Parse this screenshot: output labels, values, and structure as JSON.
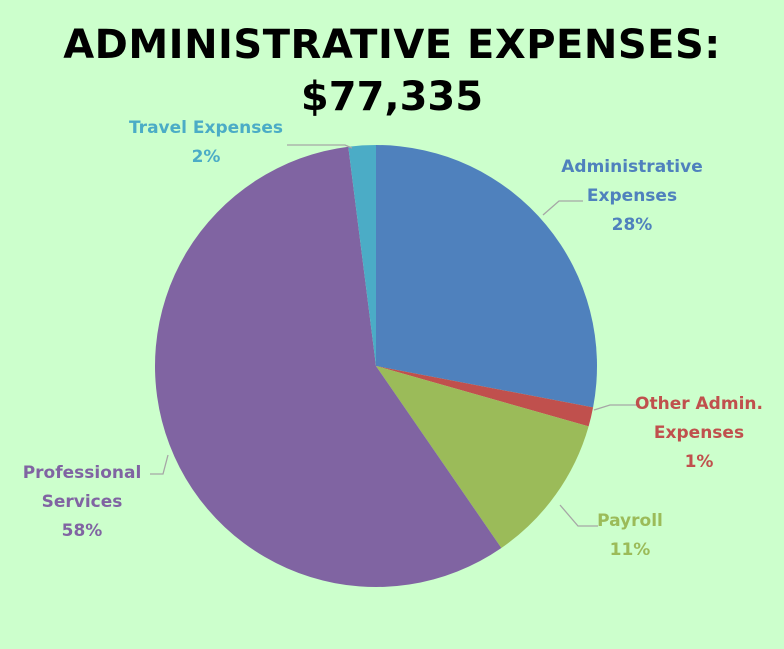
{
  "chart_data": {
    "type": "pie",
    "title": "ADMINISTRATIVE EXPENSES:",
    "subtitle": "$77,335",
    "slices": [
      {
        "label_lines": [
          "Administrative",
          "Expenses",
          "28%"
        ],
        "value": 28,
        "color": "#4f81bd"
      },
      {
        "label_lines": [
          "Other Admin.",
          "Expenses",
          "1%"
        ],
        "value": 1.4,
        "color": "#c0504d"
      },
      {
        "label_lines": [
          "Payroll",
          "11%"
        ],
        "value": 11,
        "color": "#9bbb59"
      },
      {
        "label_lines": [
          "Professional",
          "Services",
          "58%"
        ],
        "value": 57.6,
        "color": "#8064a2"
      },
      {
        "label_lines": [
          "Travel Expenses",
          "2%"
        ],
        "value": 2,
        "color": "#4bacc6"
      }
    ]
  }
}
